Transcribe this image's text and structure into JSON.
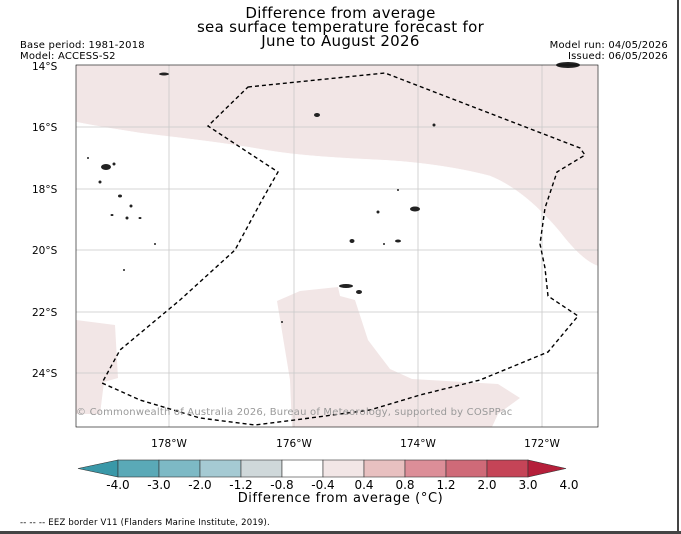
{
  "title": {
    "line1": "Difference from average",
    "line2": "sea surface temperature forecast for",
    "line3": "June to August 2026"
  },
  "meta": {
    "base_period": "Base period: 1981-2018",
    "model": "Model: ACCESS-S2",
    "model_run": "Model run: 04/05/2026",
    "issued": "Issued: 06/05/2026"
  },
  "latitude_labels": [
    "14°S",
    "16°S",
    "18°S",
    "20°S",
    "22°S",
    "24°S"
  ],
  "longitude_labels": [
    "178°W",
    "176°W",
    "174°W",
    "172°W"
  ],
  "copyright": "© Commonwealth of Australia 2026, Bureau of Meteorology, supported by COSPPac",
  "colorbar": {
    "ticks": [
      "-4.0",
      "-3.0",
      "-2.0",
      "-1.2",
      "-0.8",
      "-0.4",
      "0.4",
      "0.8",
      "1.2",
      "2.0",
      "3.0",
      "4.0"
    ],
    "colors": [
      "#3a98a8",
      "#5aa9b7",
      "#7db9c5",
      "#a5cad3",
      "#cfd8da",
      "#ffffff",
      "#f2e6e6",
      "#e8c0c0",
      "#dc8e98",
      "#cf6a78",
      "#c54457",
      "#b51f3a"
    ],
    "label": "Difference from average (°C)"
  },
  "legend": {
    "eez": "-- -- -- EEZ border V11 (Flanders Marine Institute, 2019)."
  }
}
